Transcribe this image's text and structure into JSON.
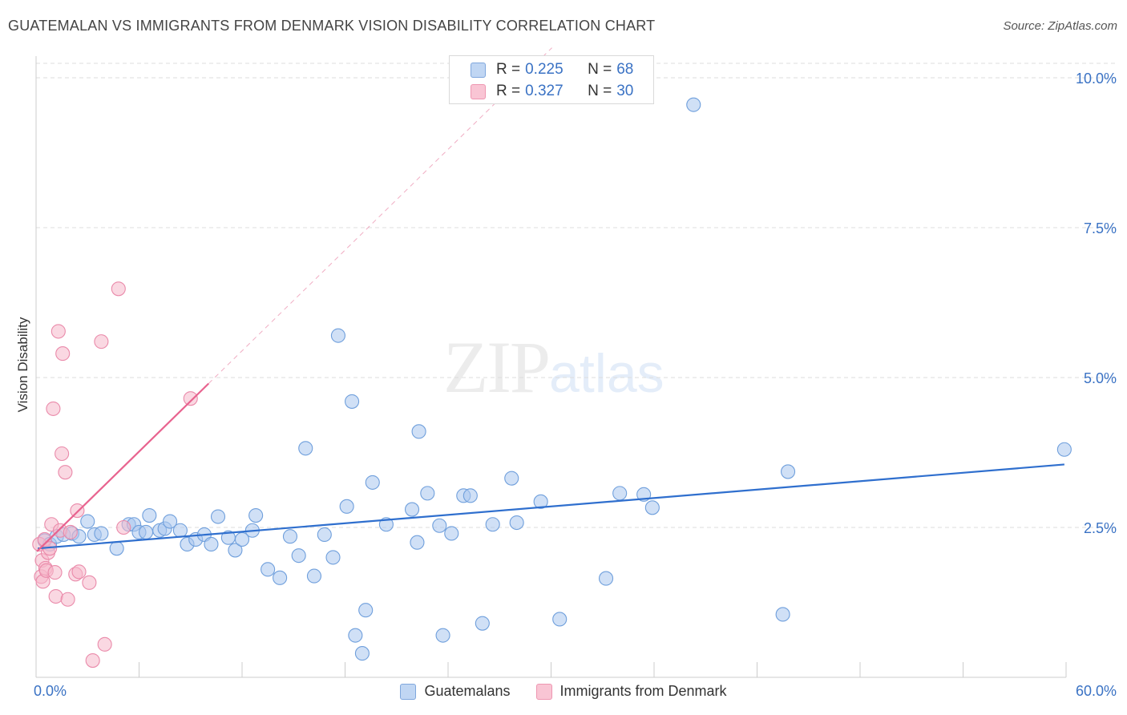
{
  "header": {
    "title": "GUATEMALAN VS IMMIGRANTS FROM DENMARK VISION DISABILITY CORRELATION CHART",
    "source": "Source: ZipAtlas.com"
  },
  "watermark": {
    "zip": "ZIP",
    "atlas": "atlas"
  },
  "legend": {
    "rows": [
      {
        "r_label": "R =",
        "r_value": "0.225",
        "n_label": "N =",
        "n_value": "68"
      },
      {
        "r_label": "R =",
        "r_value": "0.327",
        "n_label": "N =",
        "n_value": "30"
      }
    ]
  },
  "colors": {
    "blue_fill": "#a9c7ef",
    "blue_stroke": "#6f9fdc",
    "blue_line": "#2f6fce",
    "pink_fill": "#f6b8cb",
    "pink_stroke": "#ea8aaa",
    "pink_line": "#e8638f",
    "grid": "#dddddd",
    "tick_label": "#3a72c4"
  },
  "chart_data": {
    "type": "scatter",
    "title": "GUATEMALAN VS IMMIGRANTS FROM DENMARK VISION DISABILITY CORRELATION CHART",
    "xlabel": "",
    "ylabel": "Vision Disability",
    "x_unit": "%",
    "xlim": [
      0,
      60
    ],
    "ylim": [
      0,
      10.5
    ],
    "x_tick_labels": [
      "0.0%",
      "60.0%"
    ],
    "y_ticks": [
      2.5,
      5.0,
      7.5,
      10.0
    ],
    "y_tick_labels": [
      "2.5%",
      "5.0%",
      "7.5%",
      "10.0%"
    ],
    "grid": true,
    "legend_position": "bottom",
    "series": [
      {
        "name": "Guatemalans",
        "color": "#6f9fdc",
        "R": 0.225,
        "N": 68,
        "trend": {
          "x": [
            0.1,
            59.9
          ],
          "y": [
            2.15,
            3.55
          ]
        },
        "points": [
          [
            0.5,
            2.28
          ],
          [
            0.8,
            2.22
          ],
          [
            1.2,
            2.35
          ],
          [
            1.6,
            2.38
          ],
          [
            2.1,
            2.4
          ],
          [
            2.5,
            2.35
          ],
          [
            3.0,
            2.6
          ],
          [
            3.4,
            2.38
          ],
          [
            3.8,
            2.4
          ],
          [
            4.7,
            2.15
          ],
          [
            5.4,
            2.55
          ],
          [
            5.7,
            2.55
          ],
          [
            6.0,
            2.42
          ],
          [
            6.4,
            2.42
          ],
          [
            6.6,
            2.7
          ],
          [
            7.2,
            2.45
          ],
          [
            7.5,
            2.48
          ],
          [
            7.8,
            2.6
          ],
          [
            8.4,
            2.45
          ],
          [
            8.8,
            2.22
          ],
          [
            9.3,
            2.3
          ],
          [
            9.8,
            2.38
          ],
          [
            10.2,
            2.22
          ],
          [
            10.6,
            2.68
          ],
          [
            11.2,
            2.33
          ],
          [
            11.6,
            2.12
          ],
          [
            12.0,
            2.3
          ],
          [
            12.6,
            2.45
          ],
          [
            12.8,
            2.7
          ],
          [
            13.5,
            1.8
          ],
          [
            14.2,
            1.66
          ],
          [
            14.8,
            2.35
          ],
          [
            15.3,
            2.03
          ],
          [
            15.7,
            3.82
          ],
          [
            16.2,
            1.69
          ],
          [
            16.8,
            2.38
          ],
          [
            17.3,
            2.0
          ],
          [
            17.6,
            5.7
          ],
          [
            18.1,
            2.85
          ],
          [
            18.4,
            4.6
          ],
          [
            18.6,
            0.7
          ],
          [
            19.0,
            0.4
          ],
          [
            19.2,
            1.12
          ],
          [
            19.6,
            3.25
          ],
          [
            20.4,
            2.55
          ],
          [
            21.9,
            2.8
          ],
          [
            22.2,
            2.25
          ],
          [
            22.3,
            4.1
          ],
          [
            22.8,
            3.07
          ],
          [
            23.5,
            2.53
          ],
          [
            23.7,
            0.7
          ],
          [
            24.2,
            2.4
          ],
          [
            24.9,
            3.03
          ],
          [
            25.3,
            3.03
          ],
          [
            26.0,
            0.9
          ],
          [
            26.6,
            2.55
          ],
          [
            27.7,
            3.32
          ],
          [
            28.0,
            2.58
          ],
          [
            29.4,
            2.93
          ],
          [
            30.5,
            0.97
          ],
          [
            33.2,
            1.65
          ],
          [
            34.0,
            3.07
          ],
          [
            35.4,
            3.05
          ],
          [
            35.9,
            2.83
          ],
          [
            38.3,
            9.55
          ],
          [
            43.5,
            1.05
          ],
          [
            43.8,
            3.43
          ],
          [
            59.9,
            3.8
          ]
        ]
      },
      {
        "name": "Immigrants from Denmark",
        "color": "#ea8aaa",
        "R": 0.327,
        "N": 30,
        "trend": {
          "x": [
            0.05,
            10.05
          ],
          "y": [
            2.1,
            4.9
          ]
        },
        "points": [
          [
            0.2,
            2.22
          ],
          [
            0.3,
            1.68
          ],
          [
            0.35,
            1.95
          ],
          [
            0.4,
            1.6
          ],
          [
            0.5,
            2.3
          ],
          [
            0.55,
            1.82
          ],
          [
            0.6,
            1.78
          ],
          [
            0.7,
            2.08
          ],
          [
            0.8,
            2.15
          ],
          [
            0.9,
            2.55
          ],
          [
            1.0,
            4.48
          ],
          [
            1.1,
            1.75
          ],
          [
            1.15,
            1.35
          ],
          [
            1.3,
            5.77
          ],
          [
            1.4,
            2.45
          ],
          [
            1.5,
            3.73
          ],
          [
            1.55,
            5.4
          ],
          [
            1.7,
            3.42
          ],
          [
            1.85,
            1.3
          ],
          [
            2.0,
            2.42
          ],
          [
            2.3,
            1.72
          ],
          [
            2.4,
            2.78
          ],
          [
            2.5,
            1.76
          ],
          [
            3.1,
            1.58
          ],
          [
            3.3,
            0.28
          ],
          [
            3.8,
            5.6
          ],
          [
            4.0,
            0.55
          ],
          [
            4.8,
            6.48
          ],
          [
            5.1,
            2.5
          ],
          [
            9.0,
            4.65
          ]
        ]
      }
    ]
  }
}
